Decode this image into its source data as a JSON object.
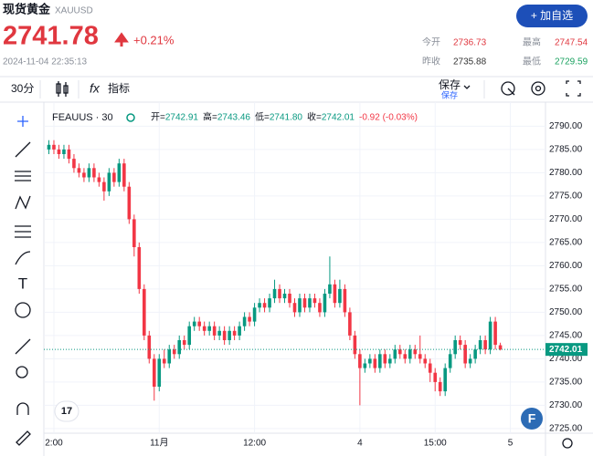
{
  "header": {
    "name": "现货黄金",
    "symbol": "XAUUSD",
    "price": "2741.78",
    "change": "+0.21%",
    "time": "2024-11-04 22:35:13",
    "stats": [
      {
        "label": "今开",
        "value": "2736.73"
      },
      {
        "label": "最高",
        "value": "2747.54"
      },
      {
        "label": "昨收",
        "value": "2735.88"
      },
      {
        "label": "最低",
        "value": "2729.59"
      }
    ],
    "button": "+ 加自选"
  },
  "toolbar": {
    "interval": "30分",
    "indicators": "指标",
    "save": "保存",
    "save_sub": "保存"
  },
  "chart_data": {
    "type": "candlestick",
    "symbol_label": "FEAUUS · 30",
    "legend": [
      {
        "label": "开=",
        "value": "2742.91"
      },
      {
        "label": "高=",
        "value": "2743.46"
      },
      {
        "label": "低=",
        "value": "2741.80"
      },
      {
        "label": "收=",
        "value": "2742.01"
      },
      {
        "label": "",
        "value": "-0.92 (-0.03%)"
      }
    ],
    "up_color": "#089981",
    "down_color": "#f23645",
    "grid": true,
    "last_price_label": "2742.01",
    "xlim": [
      -1,
      99
    ],
    "xticks": [
      {
        "value": 1,
        "label": "2:00"
      },
      {
        "value": 22,
        "label": "11月"
      },
      {
        "value": 41,
        "label": "12:00"
      },
      {
        "value": 62,
        "label": "4"
      },
      {
        "value": 77,
        "label": "15:00"
      },
      {
        "value": 92,
        "label": "5"
      }
    ],
    "ylim": [
      2724,
      2794
    ],
    "yticks": [
      {
        "value": 2725,
        "label": "2725.00"
      },
      {
        "value": 2730,
        "label": "2730.00"
      },
      {
        "value": 2735,
        "label": "2735.00"
      },
      {
        "value": 2740,
        "label": "2740.00"
      },
      {
        "value": 2745,
        "label": "2745.00"
      },
      {
        "value": 2750,
        "label": "2750.00"
      },
      {
        "value": 2755,
        "label": "2755.00"
      },
      {
        "value": 2760,
        "label": "2760.00"
      },
      {
        "value": 2765,
        "label": "2765.00"
      },
      {
        "value": 2770,
        "label": "2770.00"
      },
      {
        "value": 2775,
        "label": "2775.00"
      },
      {
        "value": 2780,
        "label": "2780.00"
      },
      {
        "value": 2785,
        "label": "2785.00"
      },
      {
        "value": 2790,
        "label": "2790.00"
      }
    ],
    "open": [
      2785,
      2786,
      2785,
      2784,
      2785,
      2783,
      2781,
      2780,
      2779,
      2781,
      2779,
      2778,
      2776,
      2780,
      2778,
      2782,
      2777,
      2770,
      2764,
      2755,
      2745,
      2740,
      2734,
      2740,
      2739,
      2742,
      2741,
      2744,
      2743,
      2747,
      2748,
      2747,
      2746,
      2747,
      2745,
      2746,
      2744,
      2746,
      2745,
      2747,
      2749,
      2748,
      2751,
      2752,
      2751,
      2753,
      2755,
      2753,
      2754,
      2752,
      2750,
      2753,
      2751,
      2753,
      2752,
      2750,
      2754,
      2756,
      2752,
      2755,
      2750,
      2745,
      2741,
      2738,
      2739,
      2740,
      2738,
      2741,
      2739,
      2740,
      2742,
      2741,
      2740,
      2742,
      2741,
      2740,
      2739,
      2737,
      2735,
      2733,
      2738,
      2741,
      2744,
      2743,
      2739,
      2740,
      2742,
      2744,
      2742,
      2748,
      2742.91
    ],
    "high": [
      2787,
      2787,
      2786,
      2786,
      2786,
      2784,
      2782,
      2781,
      2782,
      2782,
      2780,
      2779,
      2781,
      2781,
      2783,
      2783,
      2778,
      2771,
      2765,
      2756,
      2746,
      2741,
      2741,
      2742,
      2743,
      2743,
      2745,
      2745,
      2748,
      2749,
      2749,
      2748,
      2748,
      2748,
      2747,
      2747,
      2747,
      2747,
      2748,
      2750,
      2750,
      2752,
      2753,
      2753,
      2754,
      2757,
      2756,
      2755,
      2755,
      2753,
      2754,
      2754,
      2754,
      2754,
      2753,
      2755,
      2762,
      2757,
      2757,
      2756,
      2751,
      2746,
      2742,
      2740,
      2741,
      2741,
      2742,
      2742,
      2741,
      2743,
      2743,
      2742,
      2743,
      2743,
      2745,
      2741,
      2740,
      2738,
      2736,
      2739,
      2742,
      2745,
      2745,
      2744,
      2741,
      2743,
      2745,
      2745,
      2749,
      2749,
      2743.46
    ],
    "low": [
      2784,
      2784,
      2783,
      2783,
      2782,
      2780,
      2779,
      2778,
      2778,
      2778,
      2777,
      2774,
      2775,
      2777,
      2777,
      2776,
      2769,
      2762,
      2754,
      2744,
      2739,
      2731,
      2733,
      2738,
      2738,
      2740,
      2740,
      2742,
      2742,
      2746,
      2746,
      2745,
      2745,
      2744,
      2744,
      2743,
      2743,
      2744,
      2744,
      2746,
      2747,
      2747,
      2750,
      2750,
      2750,
      2752,
      2752,
      2752,
      2751,
      2749,
      2749,
      2750,
      2750,
      2751,
      2749,
      2749,
      2753,
      2751,
      2751,
      2749,
      2744,
      2740,
      2730,
      2737,
      2738,
      2737,
      2737,
      2738,
      2738,
      2739,
      2740,
      2739,
      2739,
      2740,
      2739,
      2738,
      2735,
      2733,
      2732,
      2732,
      2737,
      2740,
      2742,
      2738,
      2738,
      2739,
      2741,
      2741,
      2741,
      2742,
      2741.8
    ],
    "close": [
      2786,
      2785,
      2784,
      2785,
      2783,
      2781,
      2780,
      2779,
      2781,
      2779,
      2778,
      2776,
      2780,
      2778,
      2782,
      2777,
      2770,
      2764,
      2755,
      2745,
      2740,
      2734,
      2740,
      2739,
      2742,
      2741,
      2744,
      2743,
      2747,
      2748,
      2747,
      2746,
      2747,
      2745,
      2746,
      2744,
      2746,
      2745,
      2747,
      2749,
      2748,
      2751,
      2752,
      2751,
      2753,
      2755,
      2753,
      2754,
      2752,
      2750,
      2753,
      2751,
      2753,
      2752,
      2750,
      2754,
      2756,
      2752,
      2755,
      2750,
      2745,
      2741,
      2738,
      2739,
      2740,
      2738,
      2741,
      2739,
      2740,
      2742,
      2741,
      2740,
      2742,
      2741,
      2740,
      2739,
      2737,
      2735,
      2733,
      2738,
      2741,
      2744,
      2743,
      2739,
      2740,
      2742,
      2744,
      2742,
      2748,
      2743,
      2742.01
    ]
  }
}
